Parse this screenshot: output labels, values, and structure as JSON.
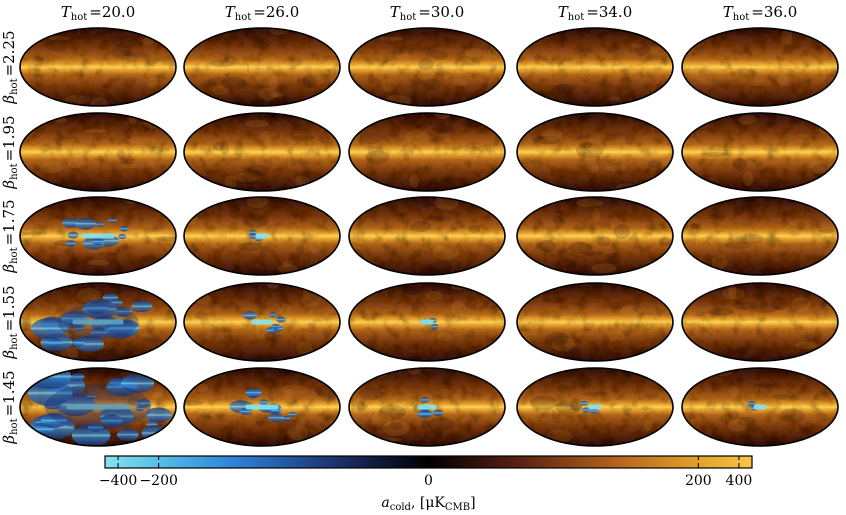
{
  "chart_data": {
    "type": "heatmap",
    "description_kind": "grid of Mollweide sky maps",
    "column_param": "T_hot",
    "row_param": "beta_hot",
    "columns": [
      {
        "label_prefix": "T",
        "label_sub": "hot",
        "label_value": "=20.0",
        "value": 20.0
      },
      {
        "label_prefix": "T",
        "label_sub": "hot",
        "label_value": "=26.0",
        "value": 26.0
      },
      {
        "label_prefix": "T",
        "label_sub": "hot",
        "label_value": "=30.0",
        "value": 30.0
      },
      {
        "label_prefix": "T",
        "label_sub": "hot",
        "label_value": "=34.0",
        "value": 34.0
      },
      {
        "label_prefix": "T",
        "label_sub": "hot",
        "label_value": "=36.0",
        "value": 36.0
      }
    ],
    "rows": [
      {
        "label_prefix": "β",
        "label_sub": "hot",
        "label_value": "=2.25",
        "value": 2.25
      },
      {
        "label_prefix": "β",
        "label_sub": "hot",
        "label_value": "=1.95",
        "value": 1.95
      },
      {
        "label_prefix": "β",
        "label_sub": "hot",
        "label_value": "=1.75",
        "value": 1.75
      },
      {
        "label_prefix": "β",
        "label_sub": "hot",
        "label_value": "=1.55",
        "value": 1.55
      },
      {
        "label_prefix": "β",
        "label_sub": "hot",
        "label_value": "=1.45",
        "value": 1.45
      }
    ],
    "colorbar": {
      "label_var": "a",
      "label_sub": "cold",
      "label_units": ", [μK",
      "label_units_sub": "CMB",
      "label_close": "]",
      "scale": "symlog",
      "range": [
        -500,
        500
      ],
      "ticks": [
        {
          "value": -400,
          "label": "−400"
        },
        {
          "value": -200,
          "label": "−200"
        },
        {
          "value": 0,
          "label": "0"
        },
        {
          "value": 200,
          "label": "200"
        },
        {
          "value": 400,
          "label": "400"
        }
      ],
      "colors": {
        "neg_end": "#86e2ee",
        "neg_mid": "#2d82d8",
        "neg_dark": "#1c2f6a",
        "zero": "#000000",
        "pos_dark": "#5a2014",
        "pos_mid": "#b8681c",
        "pos_end": "#f6c64a"
      }
    },
    "negative_fraction_by_cell": [
      [
        0.0,
        0.0,
        0.0,
        0.0,
        0.0
      ],
      [
        0.0,
        0.0,
        0.0,
        0.0,
        0.0
      ],
      [
        0.35,
        0.02,
        0.0,
        0.0,
        0.0
      ],
      [
        0.65,
        0.15,
        0.02,
        0.0,
        0.0
      ],
      [
        0.85,
        0.35,
        0.12,
        0.02,
        0.01
      ]
    ]
  }
}
